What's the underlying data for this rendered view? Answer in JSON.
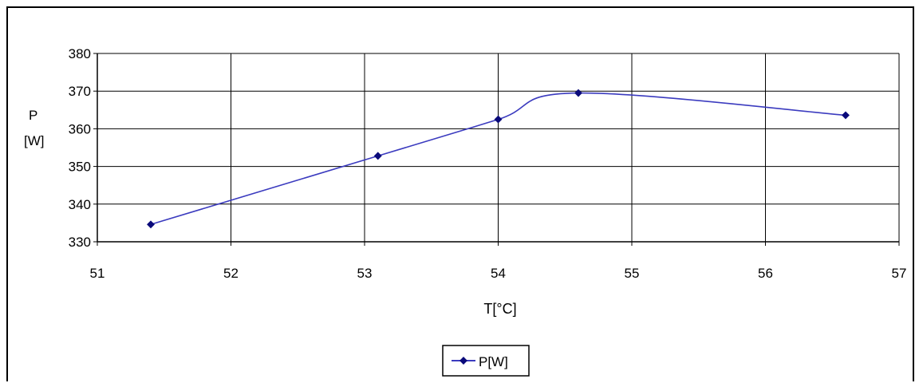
{
  "chart_data": {
    "type": "line",
    "xlabel": "T[°C]",
    "ylabel_line1": "P",
    "ylabel_line2": "[W]",
    "xlim": [
      51,
      57
    ],
    "ylim": [
      330,
      380
    ],
    "xticks": [
      51,
      52,
      53,
      54,
      55,
      56,
      57
    ],
    "yticks": [
      330,
      340,
      350,
      360,
      370,
      380
    ],
    "grid": true,
    "legend_position": "bottom-center",
    "series": [
      {
        "name": "P[W]",
        "color": "#3b3bbf",
        "marker_color": "#0a0a7a",
        "x": [
          51.4,
          53.1,
          54.0,
          54.6,
          56.6
        ],
        "y": [
          334.6,
          352.8,
          362.5,
          369.5,
          363.6
        ]
      }
    ]
  }
}
